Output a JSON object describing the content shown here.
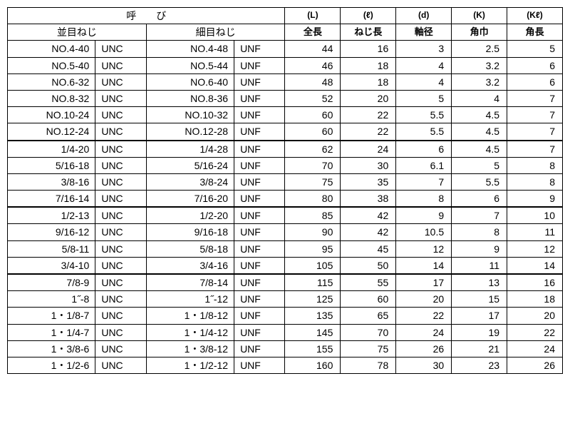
{
  "header": {
    "yobi": "呼　　び",
    "coarse": "並目ねじ",
    "fine": "細目ねじ",
    "cols": [
      {
        "sym": "(L)",
        "jp": "全長"
      },
      {
        "sym": "(ℓ)",
        "jp": "ねじ長"
      },
      {
        "sym": "(d)",
        "jp": "軸径"
      },
      {
        "sym": "(K)",
        "jp": "角巾"
      },
      {
        "sym": "(Kℓ)",
        "jp": "角長"
      }
    ]
  },
  "groups": [
    [
      {
        "c_size": "NO.4-40",
        "c_std": "UNC",
        "f_size": "NO.4-48",
        "f_std": "UNF",
        "v": [
          "44",
          "16",
          "3",
          "2.5",
          "5"
        ]
      },
      {
        "c_size": "NO.5-40",
        "c_std": "UNC",
        "f_size": "NO.5-44",
        "f_std": "UNF",
        "v": [
          "46",
          "18",
          "4",
          "3.2",
          "6"
        ]
      },
      {
        "c_size": "NO.6-32",
        "c_std": "UNC",
        "f_size": "NO.6-40",
        "f_std": "UNF",
        "v": [
          "48",
          "18",
          "4",
          "3.2",
          "6"
        ]
      },
      {
        "c_size": "NO.8-32",
        "c_std": "UNC",
        "f_size": "NO.8-36",
        "f_std": "UNF",
        "v": [
          "52",
          "20",
          "5",
          "4",
          "7"
        ]
      },
      {
        "c_size": "NO.10-24",
        "c_std": "UNC",
        "f_size": "NO.10-32",
        "f_std": "UNF",
        "v": [
          "60",
          "22",
          "5.5",
          "4.5",
          "7"
        ]
      },
      {
        "c_size": "NO.12-24",
        "c_std": "UNC",
        "f_size": "NO.12-28",
        "f_std": "UNF",
        "v": [
          "60",
          "22",
          "5.5",
          "4.5",
          "7"
        ]
      }
    ],
    [
      {
        "c_size": "1/4-20",
        "c_std": "UNC",
        "f_size": "1/4-28",
        "f_std": "UNF",
        "v": [
          "62",
          "24",
          "6",
          "4.5",
          "7"
        ]
      },
      {
        "c_size": "5/16-18",
        "c_std": "UNC",
        "f_size": "5/16-24",
        "f_std": "UNF",
        "v": [
          "70",
          "30",
          "6.1",
          "5",
          "8"
        ]
      },
      {
        "c_size": "3/8-16",
        "c_std": "UNC",
        "f_size": "3/8-24",
        "f_std": "UNF",
        "v": [
          "75",
          "35",
          "7",
          "5.5",
          "8"
        ]
      },
      {
        "c_size": "7/16-14",
        "c_std": "UNC",
        "f_size": "7/16-20",
        "f_std": "UNF",
        "v": [
          "80",
          "38",
          "8",
          "6",
          "9"
        ]
      }
    ],
    [
      {
        "c_size": "1/2-13",
        "c_std": "UNC",
        "f_size": "1/2-20",
        "f_std": "UNF",
        "v": [
          "85",
          "42",
          "9",
          "7",
          "10"
        ]
      },
      {
        "c_size": "9/16-12",
        "c_std": "UNC",
        "f_size": "9/16-18",
        "f_std": "UNF",
        "v": [
          "90",
          "42",
          "10.5",
          "8",
          "11"
        ]
      },
      {
        "c_size": "5/8-11",
        "c_std": "UNC",
        "f_size": "5/8-18",
        "f_std": "UNF",
        "v": [
          "95",
          "45",
          "12",
          "9",
          "12"
        ]
      },
      {
        "c_size": "3/4-10",
        "c_std": "UNC",
        "f_size": "3/4-16",
        "f_std": "UNF",
        "v": [
          "105",
          "50",
          "14",
          "11",
          "14"
        ]
      }
    ],
    [
      {
        "c_size": "7/8-9",
        "c_std": "UNC",
        "f_size": "7/8-14",
        "f_std": "UNF",
        "v": [
          "115",
          "55",
          "17",
          "13",
          "16"
        ]
      },
      {
        "c_size": "1˝-8",
        "c_std": "UNC",
        "f_size": "1˝-12",
        "f_std": "UNF",
        "v": [
          "125",
          "60",
          "20",
          "15",
          "18"
        ]
      },
      {
        "c_size": "1・1/8-7",
        "c_std": "UNC",
        "f_size": "1・1/8-12",
        "f_std": "UNF",
        "v": [
          "135",
          "65",
          "22",
          "17",
          "20"
        ]
      },
      {
        "c_size": "1・1/4-7",
        "c_std": "UNC",
        "f_size": "1・1/4-12",
        "f_std": "UNF",
        "v": [
          "145",
          "70",
          "24",
          "19",
          "22"
        ]
      },
      {
        "c_size": "1・3/8-6",
        "c_std": "UNC",
        "f_size": "1・3/8-12",
        "f_std": "UNF",
        "v": [
          "155",
          "75",
          "26",
          "21",
          "24"
        ]
      },
      {
        "c_size": "1・1/2-6",
        "c_std": "UNC",
        "f_size": "1・1/2-12",
        "f_std": "UNF",
        "v": [
          "160",
          "78",
          "30",
          "23",
          "26"
        ]
      }
    ]
  ]
}
